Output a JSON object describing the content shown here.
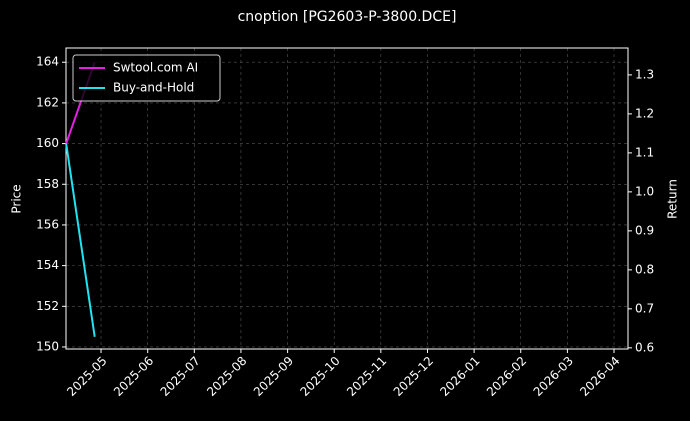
{
  "chart_data": {
    "type": "line",
    "title": "cnoption [PG2603-P-3800.DCE]",
    "y_label": "Price",
    "y2_label": "Return",
    "x": [
      2025.271,
      2025.322
    ],
    "series": [
      {
        "name": "Swtool.com AI",
        "color": "#e61ee6",
        "values": [
          160,
          164
        ]
      },
      {
        "name": "Buy-and-Hold",
        "color": "#22e4f0",
        "values": [
          160,
          150.5
        ]
      }
    ],
    "xlim": [
      2025.2707,
      2026.275
    ],
    "xticks": [
      {
        "value": 2025.3333,
        "label": "2025-05"
      },
      {
        "value": 2025.4167,
        "label": "2025-06"
      },
      {
        "value": 2025.5,
        "label": "2025-07"
      },
      {
        "value": 2025.5833,
        "label": "2025-08"
      },
      {
        "value": 2025.6667,
        "label": "2025-09"
      },
      {
        "value": 2025.75,
        "label": "2025-10"
      },
      {
        "value": 2025.8333,
        "label": "2025-11"
      },
      {
        "value": 2025.9167,
        "label": "2025-12"
      },
      {
        "value": 2026.0,
        "label": "2026-01"
      },
      {
        "value": 2026.0833,
        "label": "2026-02"
      },
      {
        "value": 2026.1667,
        "label": "2026-03"
      },
      {
        "value": 2026.25,
        "label": "2026-04"
      }
    ],
    "ylim": [
      149.9,
      164.7
    ],
    "yticks": [
      150,
      152,
      154,
      156,
      158,
      160,
      162,
      164
    ],
    "y2lim": [
      0.597,
      1.369
    ],
    "y2ticks": [
      0.6,
      0.7,
      0.8,
      0.9,
      {
        "value": 1,
        "label": "1.0"
      },
      1.1,
      1.2,
      1.3
    ],
    "grid": true,
    "legend": "upper-left"
  }
}
